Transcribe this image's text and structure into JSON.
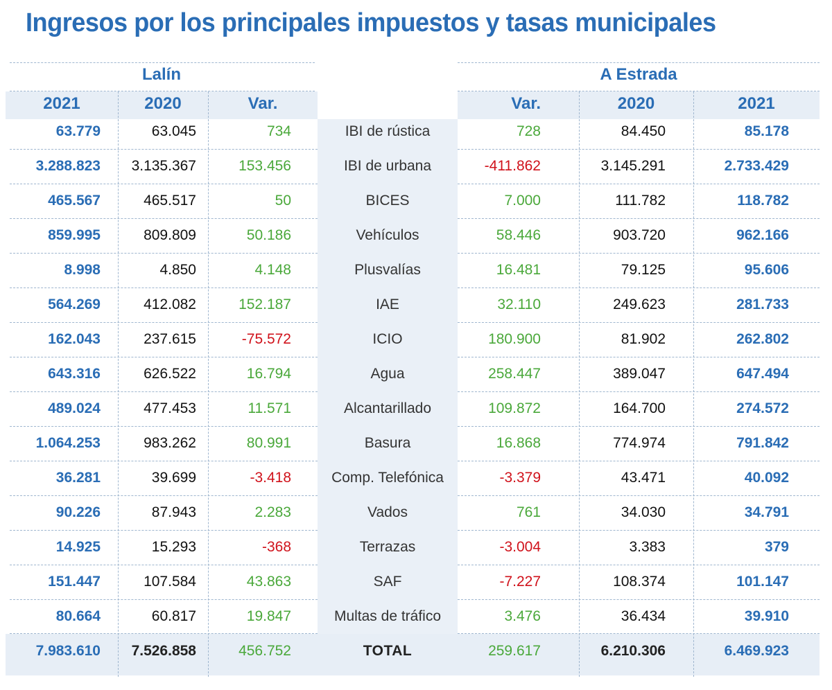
{
  "title": "Ingresos por los principales impuestos y tasas municipales",
  "colors": {
    "blue": "#2a6db5",
    "green": "#4aa83a",
    "red": "#d0121b",
    "band": "#e7eef6"
  },
  "chart_data": {
    "type": "table",
    "title": "Ingresos por los principales impuestos y tasas municipales",
    "groups": [
      "Lalín",
      "A Estrada"
    ],
    "columns_left": [
      "2021",
      "2020",
      "Var."
    ],
    "columns_right": [
      "Var.",
      "2020",
      "2021"
    ],
    "rows": [
      {
        "concept": "IBI de rústica",
        "lalin_2021": "63.779",
        "lalin_2020": "63.045",
        "lalin_var": "734",
        "estrada_var": "728",
        "estrada_2020": "84.450",
        "estrada_2021": "85.178"
      },
      {
        "concept": "IBI de urbana",
        "lalin_2021": "3.288.823",
        "lalin_2020": "3.135.367",
        "lalin_var": "153.456",
        "estrada_var": "-411.862",
        "estrada_2020": "3.145.291",
        "estrada_2021": "2.733.429"
      },
      {
        "concept": "BICES",
        "lalin_2021": "465.567",
        "lalin_2020": "465.517",
        "lalin_var": "50",
        "estrada_var": "7.000",
        "estrada_2020": "111.782",
        "estrada_2021": "118.782"
      },
      {
        "concept": "Vehículos",
        "lalin_2021": "859.995",
        "lalin_2020": "809.809",
        "lalin_var": "50.186",
        "estrada_var": "58.446",
        "estrada_2020": "903.720",
        "estrada_2021": "962.166"
      },
      {
        "concept": "Plusvalías",
        "lalin_2021": "8.998",
        "lalin_2020": "4.850",
        "lalin_var": "4.148",
        "estrada_var": "16.481",
        "estrada_2020": "79.125",
        "estrada_2021": "95.606"
      },
      {
        "concept": "IAE",
        "lalin_2021": "564.269",
        "lalin_2020": "412.082",
        "lalin_var": "152.187",
        "estrada_var": "32.110",
        "estrada_2020": "249.623",
        "estrada_2021": "281.733"
      },
      {
        "concept": "ICIO",
        "lalin_2021": "162.043",
        "lalin_2020": "237.615",
        "lalin_var": "-75.572",
        "estrada_var": "180.900",
        "estrada_2020": "81.902",
        "estrada_2021": "262.802"
      },
      {
        "concept": "Agua",
        "lalin_2021": "643.316",
        "lalin_2020": "626.522",
        "lalin_var": "16.794",
        "estrada_var": "258.447",
        "estrada_2020": "389.047",
        "estrada_2021": "647.494"
      },
      {
        "concept": "Alcantarillado",
        "lalin_2021": "489.024",
        "lalin_2020": "477.453",
        "lalin_var": "11.571",
        "estrada_var": "109.872",
        "estrada_2020": "164.700",
        "estrada_2021": "274.572"
      },
      {
        "concept": "Basura",
        "lalin_2021": "1.064.253",
        "lalin_2020": "983.262",
        "lalin_var": "80.991",
        "estrada_var": "16.868",
        "estrada_2020": "774.974",
        "estrada_2021": "791.842"
      },
      {
        "concept": "Comp. Telefónica",
        "lalin_2021": "36.281",
        "lalin_2020": "39.699",
        "lalin_var": "-3.418",
        "estrada_var": "-3.379",
        "estrada_2020": "43.471",
        "estrada_2021": "40.092"
      },
      {
        "concept": "Vados",
        "lalin_2021": "90.226",
        "lalin_2020": "87.943",
        "lalin_var": "2.283",
        "estrada_var": "761",
        "estrada_2020": "34.030",
        "estrada_2021": "34.791"
      },
      {
        "concept": "Terrazas",
        "lalin_2021": "14.925",
        "lalin_2020": "15.293",
        "lalin_var": "-368",
        "estrada_var": "-3.004",
        "estrada_2020": "3.383",
        "estrada_2021": "379"
      },
      {
        "concept": "SAF",
        "lalin_2021": "151.447",
        "lalin_2020": "107.584",
        "lalin_var": "43.863",
        "estrada_var": "-7.227",
        "estrada_2020": "108.374",
        "estrada_2021": "101.147"
      },
      {
        "concept": "Multas de tráfico",
        "lalin_2021": "80.664",
        "lalin_2020": "60.817",
        "lalin_var": "19.847",
        "estrada_var": "3.476",
        "estrada_2020": "36.434",
        "estrada_2021": "39.910"
      }
    ],
    "total": {
      "concept": "TOTAL",
      "lalin_2021": "7.983.610",
      "lalin_2020": "7.526.858",
      "lalin_var": "456.752",
      "estrada_var": "259.617",
      "estrada_2020": "6.210.306",
      "estrada_2021": "6.469.923"
    }
  }
}
